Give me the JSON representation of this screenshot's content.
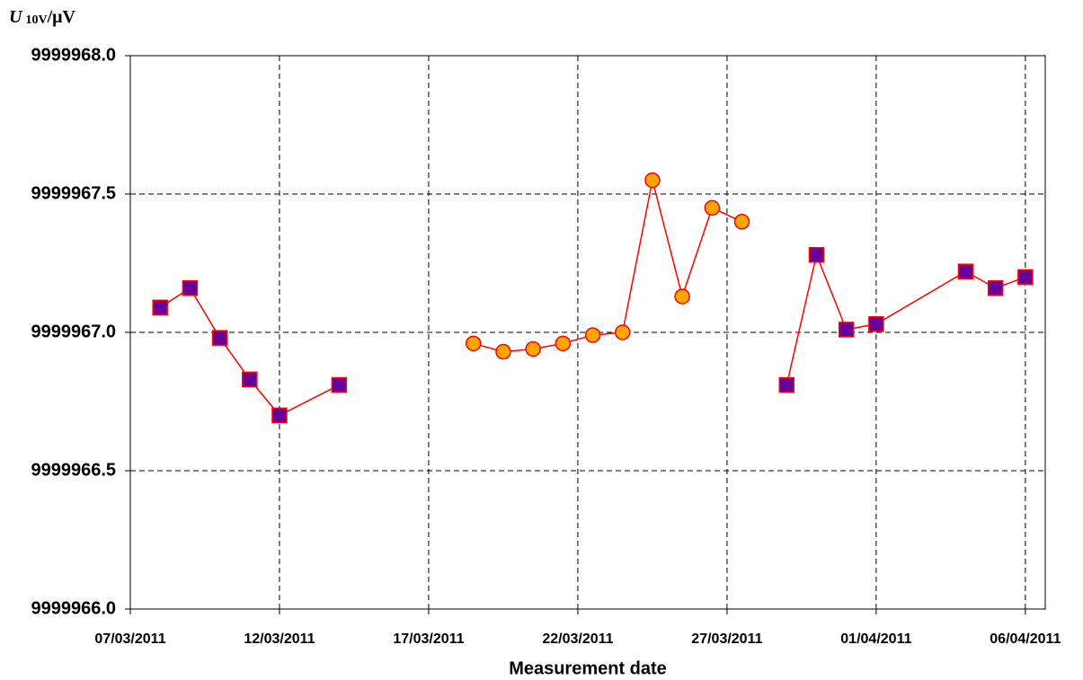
{
  "chart_data": {
    "type": "line",
    "y_label": {
      "symbol": "U",
      "subscript": "10V",
      "unit": "/μV"
    },
    "x_label": "Measurement date",
    "xlim": [
      "2011-03-07",
      "2011-04-06T16:00"
    ],
    "xticks": [
      {
        "value": "2011-03-07",
        "label": "07/03/2011"
      },
      {
        "value": "2011-03-12",
        "label": "12/03/2011"
      },
      {
        "value": "2011-03-17",
        "label": "17/03/2011"
      },
      {
        "value": "2011-03-22",
        "label": "22/03/2011"
      },
      {
        "value": "2011-03-27",
        "label": "27/03/2011"
      },
      {
        "value": "2011-04-01",
        "label": "01/04/2011"
      },
      {
        "value": "2011-04-06",
        "label": "06/04/2011"
      }
    ],
    "ylim": [
      9999966,
      9999968
    ],
    "yticks": [
      {
        "value": 9999966,
        "label": "9999966.0"
      },
      {
        "value": 9999966.5,
        "label": "9999966.5"
      },
      {
        "value": 9999967,
        "label": "9999967.0"
      },
      {
        "value": 9999967.5,
        "label": "9999967.5"
      },
      {
        "value": 9999968,
        "label": "9999968.0"
      }
    ],
    "grid": true,
    "series": [
      {
        "marker": "square",
        "color": "#ff0000",
        "marker_fill": "#660099",
        "x": [
          "2011-03-08",
          "2011-03-09",
          "2011-03-10",
          "2011-03-11",
          "2011-03-12",
          "2011-03-14"
        ],
        "values": [
          9999967.09,
          9999967.16,
          9999966.98,
          9999966.83,
          9999966.7,
          9999966.81
        ]
      },
      {
        "marker": "circle",
        "color": "#ff0000",
        "marker_fill": "#ffa500",
        "x": [
          "2011-03-18T12:00",
          "2011-03-19T12:00",
          "2011-03-20T12:00",
          "2011-03-21T12:00",
          "2011-03-22T12:00",
          "2011-03-23T12:00",
          "2011-03-24T12:00",
          "2011-03-25T12:00",
          "2011-03-26T12:00",
          "2011-03-27T12:00"
        ],
        "values": [
          9999966.96,
          9999966.93,
          9999966.94,
          9999966.96,
          9999966.99,
          9999967.0,
          9999967.55,
          9999967.13,
          9999967.45,
          9999967.4
        ]
      },
      {
        "marker": "square",
        "color": "#ff0000",
        "marker_fill": "#660099",
        "x": [
          "2011-03-29",
          "2011-03-30",
          "2011-03-31",
          "2011-04-01",
          "2011-04-04",
          "2011-04-05",
          "2011-04-06"
        ],
        "values": [
          9999966.81,
          9999967.28,
          9999967.01,
          9999967.03,
          9999967.22,
          9999967.16,
          9999967.2
        ]
      }
    ]
  }
}
